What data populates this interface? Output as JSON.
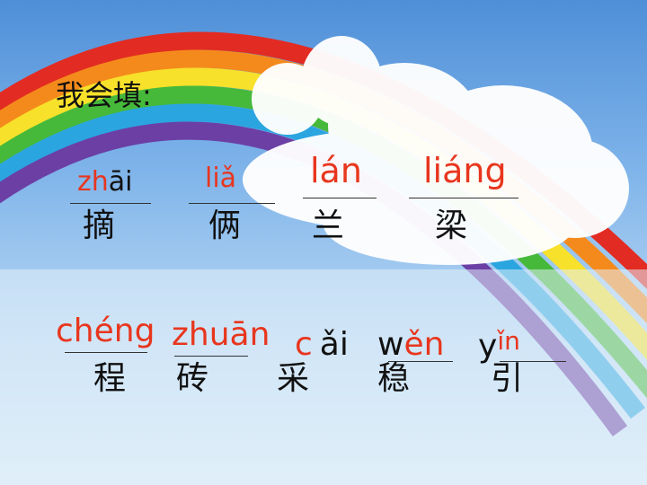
{
  "title": "我会填:",
  "row1": {
    "items": [
      {
        "py_red": "zh",
        "py_black": "āi",
        "hanzi": "摘"
      },
      {
        "py_red": "liǎ",
        "hanzi": "俩"
      },
      {
        "py_red": "lán",
        "hanzi": "兰"
      },
      {
        "py_red": "liáng",
        "hanzi": "梁"
      }
    ]
  },
  "row2": {
    "items": [
      {
        "py_red": "chéng",
        "hanzi": "程"
      },
      {
        "py_red": "zhuān",
        "hanzi": "砖"
      },
      {
        "py_red": "c",
        "py_black": "ǎi",
        "hanzi": "采"
      },
      {
        "py_black": "w",
        "py_red": "ěn",
        "hanzi": "稳"
      },
      {
        "py_black": "y",
        "py_red": "ǐn",
        "hanzi": "引"
      }
    ]
  },
  "colors": {
    "pinyin_fill": "#e8361e",
    "text": "#111111",
    "sky_top": "#4f8fd8",
    "sky_bottom": "#dcecf8"
  }
}
